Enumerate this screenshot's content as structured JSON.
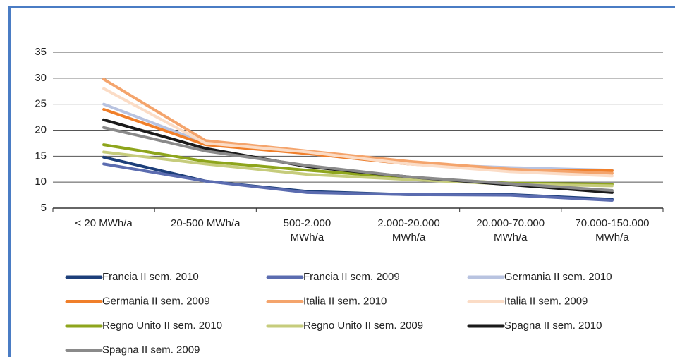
{
  "chart_data": {
    "type": "line",
    "categories": [
      "< 20 MWh/a",
      "20-500 MWh/a",
      "500-2.000\nMWh/a",
      "2.000-20.000\nMWh/a",
      "20.000-70.000\nMWh/a",
      "70.000-150.000\nMWh/a"
    ],
    "series": [
      {
        "name": "Francia II sem. 2010",
        "color": "#1d3f7a",
        "values": [
          14.8,
          10.2,
          8.2,
          7.6,
          7.6,
          6.7
        ]
      },
      {
        "name": "Francia II sem. 2009",
        "color": "#5b6cb0",
        "values": [
          13.5,
          10.2,
          8.0,
          7.6,
          7.5,
          6.5
        ]
      },
      {
        "name": "Germania II sem. 2010",
        "color": "#b8c3e0",
        "values": [
          25,
          17.5,
          15.5,
          13.5,
          12.8,
          12.3
        ]
      },
      {
        "name": "Germania II sem. 2009",
        "color": "#f07f2a",
        "values": [
          24,
          17.2,
          15.5,
          13.5,
          12.3,
          12.2
        ]
      },
      {
        "name": "Italia II sem. 2010",
        "color": "#f4a46c",
        "values": [
          29.8,
          18,
          16,
          14,
          12.5,
          11.7
        ]
      },
      {
        "name": "Italia II sem. 2009",
        "color": "#fbdcc6",
        "values": [
          28,
          17.5,
          15.8,
          13.5,
          12,
          11.2
        ]
      },
      {
        "name": "Regno Unito II sem. 2010",
        "color": "#8ea51c",
        "values": [
          17.2,
          14,
          12.3,
          10.8,
          9.8,
          9.6
        ]
      },
      {
        "name": "Regno Unito II sem. 2009",
        "color": "#c6cc7c",
        "values": [
          15.8,
          13.5,
          11.5,
          10.5,
          9.6,
          9.3
        ]
      },
      {
        "name": "Spagna II sem. 2010",
        "color": "#1a1a1a",
        "values": [
          22,
          16.5,
          13,
          11,
          9.5,
          8
        ]
      },
      {
        "name": "Spagna II sem. 2009",
        "color": "#8a8a8a",
        "values": [
          20.5,
          16,
          13.2,
          11,
          9.7,
          8.4
        ]
      }
    ],
    "ylim": [
      5,
      35
    ],
    "yticks": [
      5,
      10,
      15,
      20,
      25,
      30,
      35
    ],
    "grid": true,
    "legend": "bottom"
  }
}
